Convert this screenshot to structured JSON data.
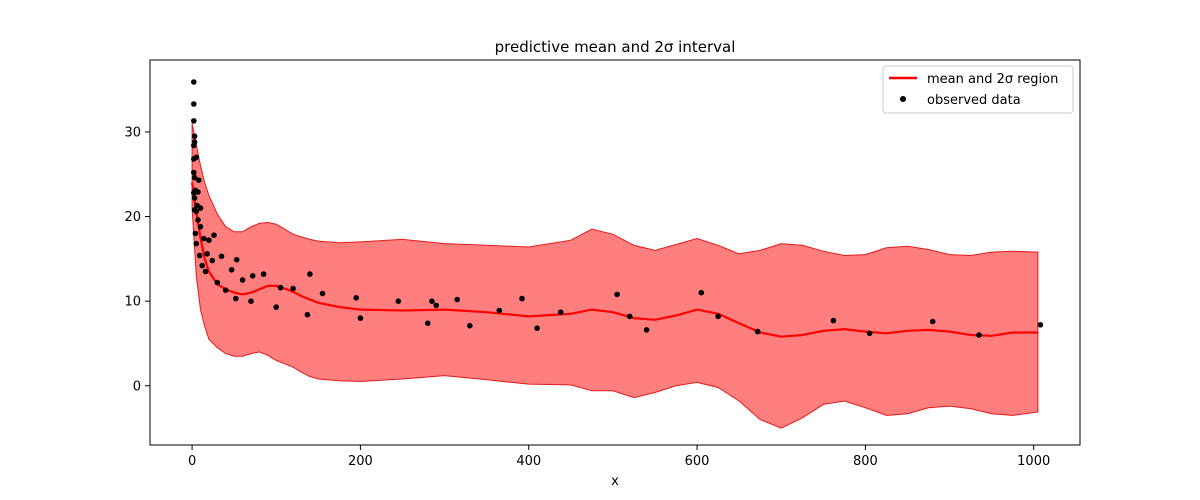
{
  "chart_data": {
    "type": "line",
    "title": "predictive mean and 2σ interval",
    "xlabel": "x",
    "ylabel": "",
    "xlim": [
      -50,
      1055
    ],
    "ylim": [
      -7,
      38.5
    ],
    "xticks": [
      0,
      200,
      400,
      600,
      800,
      1000
    ],
    "yticks": [
      0,
      10,
      20,
      30
    ],
    "grid": false,
    "legend": {
      "location": "top-right",
      "entries": [
        "mean and 2σ region",
        "observed data"
      ]
    },
    "colors": {
      "mean_line": "#ff0000",
      "band_fill": "#ff7f7f",
      "band_edge": "#e31a1c",
      "points": "#000000"
    },
    "mean_series": {
      "name": "mean and 2σ region",
      "x": [
        0,
        5,
        10,
        15,
        20,
        30,
        40,
        50,
        60,
        70,
        80,
        90,
        100,
        110,
        120,
        130,
        140,
        150,
        175,
        200,
        250,
        300,
        350,
        400,
        450,
        475,
        500,
        525,
        550,
        575,
        600,
        625,
        650,
        675,
        700,
        725,
        750,
        775,
        800,
        825,
        850,
        875,
        900,
        925,
        950,
        975,
        1005
      ],
      "y": [
        24,
        20.5,
        17.5,
        15,
        13.5,
        12,
        11.4,
        11,
        10.8,
        11,
        11.4,
        11.8,
        11.8,
        11.5,
        11.1,
        10.6,
        10.2,
        9.8,
        9.3,
        9.0,
        8.9,
        9.0,
        8.7,
        8.2,
        8.5,
        9.0,
        8.7,
        8.0,
        7.8,
        8.3,
        9.0,
        8.5,
        7.4,
        6.3,
        5.8,
        6.0,
        6.5,
        6.7,
        6.4,
        6.2,
        6.5,
        6.6,
        6.4,
        6.0,
        5.9,
        6.3,
        6.3
      ]
    },
    "band_upper": [
      31,
      28.5,
      26,
      24,
      22.5,
      20.3,
      18.8,
      18.2,
      18.2,
      18.8,
      19.2,
      19.3,
      19.1,
      18.5,
      17.9,
      17.6,
      17.3,
      17.1,
      16.9,
      17.0,
      17.3,
      16.8,
      16.6,
      16.4,
      17.2,
      18.5,
      17.9,
      16.6,
      16.0,
      16.7,
      17.4,
      16.6,
      15.6,
      16.0,
      16.8,
      16.6,
      15.9,
      15.4,
      15.5,
      16.3,
      16.5,
      16.1,
      15.5,
      15.4,
      15.8,
      15.9,
      15.8
    ],
    "band_lower": [
      21,
      13,
      9,
      7,
      5.5,
      4.5,
      3.8,
      3.5,
      3.5,
      3.8,
      4.0,
      3.6,
      3.0,
      2.6,
      2.2,
      1.6,
      1.1,
      0.8,
      0.6,
      0.5,
      0.8,
      1.2,
      0.7,
      0.2,
      0.1,
      -0.6,
      -0.6,
      -1.4,
      -0.8,
      0.0,
      0.4,
      -0.2,
      -1.8,
      -4.0,
      -5.0,
      -3.8,
      -2.2,
      -1.8,
      -2.6,
      -3.5,
      -3.3,
      -2.6,
      -2.4,
      -2.7,
      -3.3,
      -3.5,
      -3.1
    ],
    "observed_data": {
      "name": "observed data",
      "x": [
        2,
        2,
        2,
        2,
        2,
        2,
        2,
        3,
        3,
        3,
        3,
        3,
        4,
        4,
        5,
        5,
        5,
        6,
        7,
        7,
        8,
        9,
        10,
        10,
        12,
        14,
        16,
        18,
        20,
        24,
        26,
        30,
        35,
        40,
        47,
        52,
        53,
        60,
        70,
        72,
        85,
        100,
        105,
        120,
        137,
        140,
        155,
        195,
        200,
        245,
        280,
        285,
        290,
        315,
        330,
        365,
        392,
        410,
        438,
        505,
        520,
        540,
        605,
        625,
        672,
        762,
        805,
        880,
        935,
        1008
      ],
      "y": [
        35.9,
        33.3,
        31.3,
        28.4,
        26.8,
        25.2,
        22.8,
        29.5,
        28.8,
        24.6,
        22.2,
        20.8,
        23.1,
        18.0,
        27.0,
        20.6,
        16.8,
        21.3,
        22.9,
        19.6,
        24.3,
        15.4,
        21.0,
        18.8,
        14.2,
        17.4,
        13.5,
        15.6,
        17.2,
        14.8,
        17.8,
        12.2,
        15.3,
        11.3,
        13.7,
        10.3,
        14.9,
        12.5,
        10.0,
        13.0,
        13.2,
        9.3,
        11.6,
        11.5,
        8.4,
        13.2,
        10.9,
        10.4,
        8.0,
        10.0,
        7.4,
        10.0,
        9.5,
        10.2,
        7.1,
        8.9,
        10.3,
        6.8,
        8.7,
        10.8,
        8.2,
        6.6,
        11.0,
        8.2,
        6.4,
        7.7,
        6.2,
        7.6,
        6.0,
        7.2
      ]
    }
  }
}
